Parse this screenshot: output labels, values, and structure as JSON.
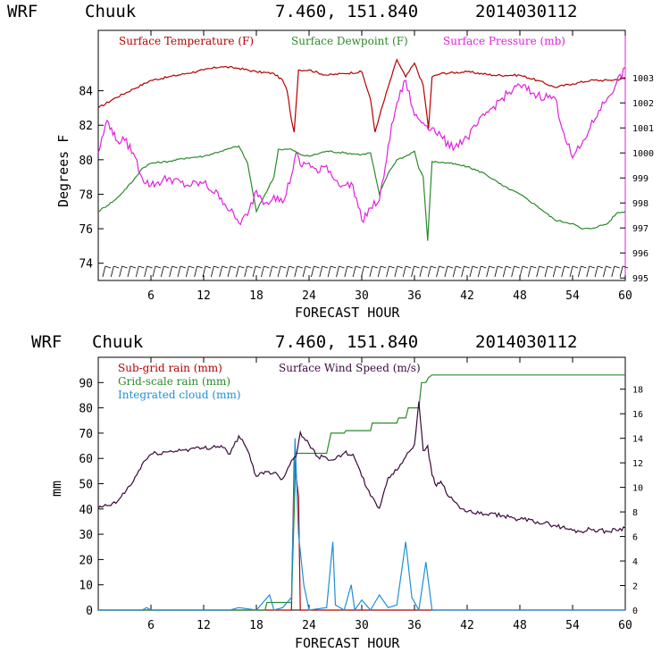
{
  "header": {
    "model": "WRF",
    "station": "Chuuk",
    "coords": "7.460, 151.840",
    "init_time": "2014030112"
  },
  "colors": {
    "temperature": "#b40000",
    "dewpoint": "#2a8a2a",
    "pressure": "#e020e0",
    "subgrid_rain": "#b40000",
    "gridscale_rain": "#2a8a2a",
    "cloud": "#1e8fd6",
    "wind": "#3a0a3a"
  },
  "chart_data": [
    {
      "type": "line",
      "xlabel": "FORECAST HOUR",
      "ylabel": "Degrees F",
      "xlim": [
        0,
        60
      ],
      "ylim": [
        73,
        87.5
      ],
      "y2lim": [
        994.9,
        1004.9
      ],
      "xticks": [
        "6",
        "12",
        "18",
        "24",
        "30",
        "36",
        "42",
        "48",
        "54",
        "60"
      ],
      "yticks": [
        "74",
        "76",
        "78",
        "80",
        "82",
        "84"
      ],
      "y2ticks": [
        "995",
        "996",
        "997",
        "998",
        "999",
        "1000",
        "1001",
        "1002",
        "1003"
      ],
      "series": [
        {
          "name": "Surface Temperature (F)",
          "axis": "left",
          "x": [
            0,
            2,
            4,
            6,
            8,
            10,
            12,
            14,
            16,
            18,
            20,
            21,
            21.5,
            22,
            22.3,
            22.8,
            24,
            26,
            28,
            30,
            31,
            31.5,
            32,
            33,
            34,
            35,
            36,
            37,
            37.6,
            38,
            39,
            42,
            45,
            48,
            50,
            52,
            54,
            56,
            58,
            60
          ],
          "y": [
            83.0,
            83.6,
            84.1,
            84.6,
            84.8,
            85.0,
            85.2,
            85.4,
            85.3,
            85.1,
            85.0,
            84.6,
            84.0,
            82.3,
            81.6,
            85.2,
            85.2,
            84.9,
            85.0,
            85.1,
            83.5,
            81.6,
            82.5,
            84.2,
            85.8,
            84.8,
            85.6,
            84.3,
            81.8,
            84.8,
            85.0,
            85.1,
            84.9,
            84.9,
            84.6,
            84.2,
            84.4,
            84.6,
            84.6,
            84.7
          ]
        },
        {
          "name": "Surface Dewpoint (F)",
          "axis": "left",
          "x": [
            0,
            2,
            4,
            5,
            6,
            8,
            10,
            12,
            14,
            16,
            17,
            18,
            19,
            20,
            20.5,
            22,
            23,
            24,
            26,
            28,
            30,
            31,
            32,
            33,
            34,
            35,
            36,
            36.5,
            37,
            37.5,
            38,
            40,
            42,
            44,
            46,
            48,
            50,
            52,
            54,
            55,
            56,
            58,
            59,
            60
          ],
          "y": [
            77.0,
            77.7,
            78.8,
            79.5,
            79.8,
            79.9,
            80.1,
            80.2,
            80.5,
            80.8,
            79.8,
            77.0,
            78.0,
            79.0,
            80.6,
            80.6,
            80.3,
            80.2,
            80.5,
            80.4,
            80.3,
            80.4,
            78.0,
            79.2,
            80.0,
            80.2,
            80.5,
            79.5,
            79.0,
            75.3,
            79.9,
            79.8,
            79.6,
            79.2,
            78.5,
            78.0,
            77.3,
            76.5,
            76.3,
            76.0,
            76.0,
            76.3,
            76.9,
            77.0
          ]
        },
        {
          "name": "Surface Pressure (mb)",
          "axis": "right",
          "x": [
            0,
            1,
            1.5,
            2,
            3,
            4,
            5,
            6,
            8,
            10,
            12,
            14,
            16,
            17,
            18,
            19,
            20,
            21,
            22,
            22.5,
            23,
            24,
            25,
            26,
            27,
            28,
            29,
            30,
            31,
            32,
            32.5,
            33,
            34,
            35,
            36,
            37,
            38,
            39,
            40,
            42,
            44,
            46,
            48,
            50,
            52,
            53,
            54,
            55,
            56,
            57,
            58,
            59,
            60
          ],
          "y": [
            1000,
            1001.3,
            1001,
            1000.5,
            1000.5,
            1000,
            999,
            998.7,
            999,
            998.7,
            998.8,
            998.2,
            997.2,
            997.5,
            998.5,
            998,
            998.3,
            998,
            999.1,
            1000,
            999.5,
            999.6,
            999.2,
            999.5,
            998.9,
            998.7,
            998.7,
            997.3,
            997.8,
            998.1,
            999,
            1000.3,
            1002,
            1002.9,
            1001.5,
            1001.2,
            1001,
            1000.7,
            1000.2,
            1000.6,
            1001.5,
            1002.2,
            1002.7,
            1002.3,
            1002.2,
            1000.8,
            999.8,
            1000.3,
            1001,
            1001.7,
            1002.2,
            1002.8,
            1003.4
          ]
        }
      ]
    },
    {
      "type": "line",
      "xlabel": "FORECAST HOUR",
      "ylabel": "mm",
      "xlim": [
        0,
        60
      ],
      "ylim": [
        0,
        100
      ],
      "y2lim": [
        0,
        20.6
      ],
      "xticks": [
        "6",
        "12",
        "18",
        "24",
        "30",
        "36",
        "42",
        "48",
        "54",
        "60"
      ],
      "yticks": [
        "0",
        "10",
        "20",
        "30",
        "40",
        "50",
        "60",
        "70",
        "80",
        "90"
      ],
      "y2ticks": [
        "0",
        "2",
        "4",
        "6",
        "8",
        "10",
        "12",
        "14",
        "16",
        "18"
      ],
      "series": [
        {
          "name": "Sub-grid rain (mm)",
          "axis": "left",
          "x": [
            0,
            22,
            22.3,
            22.8,
            23,
            24,
            28,
            60
          ],
          "y": [
            0,
            0,
            60,
            45,
            0,
            0,
            0,
            0
          ]
        },
        {
          "name": "Grid-scale rain (mm)",
          "axis": "left",
          "x": [
            0,
            16,
            19,
            19.2,
            22,
            22.5,
            26,
            26.5,
            28,
            28.2,
            31,
            31.2,
            34,
            34.2,
            35,
            35.3,
            36.5,
            36.8,
            37.3,
            37.6,
            38,
            40,
            60
          ],
          "y": [
            0,
            0,
            0,
            3,
            3,
            62,
            62,
            70,
            70,
            71,
            71,
            74,
            74,
            76,
            76,
            80,
            80,
            90,
            90,
            92,
            93,
            93,
            93
          ]
        },
        {
          "name": "Integrated cloud (mm)",
          "axis": "left",
          "x": [
            0,
            5,
            5.5,
            6,
            15,
            16,
            18,
            19.5,
            20,
            21,
            22,
            22.4,
            22.8,
            23.4,
            24,
            26,
            26.7,
            27,
            28,
            28.8,
            29.2,
            30,
            31,
            32,
            33,
            34,
            35,
            35.7,
            36.5,
            37.3,
            38,
            40,
            60
          ],
          "y": [
            0,
            0,
            1,
            0,
            0,
            1,
            0,
            6,
            0,
            1,
            5,
            68,
            30,
            10,
            0,
            1,
            27,
            2,
            0,
            10,
            0,
            4,
            0,
            6,
            1,
            2,
            27,
            5,
            0,
            19,
            0,
            0,
            0
          ]
        },
        {
          "name": "Surface Wind Speed (m/s)",
          "axis": "right",
          "x": [
            0,
            2,
            4,
            5,
            6,
            8,
            10,
            12,
            14,
            15,
            16,
            17,
            18,
            19,
            20,
            21,
            22,
            22.5,
            23,
            24,
            25,
            26,
            27,
            28,
            29,
            30,
            31,
            32,
            33,
            34,
            35,
            36,
            36.5,
            37,
            37.5,
            38,
            38.5,
            39,
            40,
            41,
            42,
            44,
            46,
            48,
            50,
            52,
            54,
            55,
            56,
            58,
            60
          ],
          "y": [
            8.3,
            8.7,
            10.5,
            11.9,
            12.7,
            12.9,
            13.1,
            13.2,
            13.4,
            12.7,
            14.2,
            13.0,
            10.9,
            11.3,
            11.2,
            10.7,
            12.2,
            12.5,
            14.5,
            13.5,
            12.5,
            12.4,
            12.3,
            12.8,
            12.7,
            10.9,
            9.3,
            8.3,
            10.8,
            11.4,
            12.5,
            13.5,
            17,
            13,
            13.4,
            11,
            10.1,
            10.5,
            9.2,
            8.5,
            8.0,
            7.8,
            7.7,
            7.4,
            7.2,
            6.9,
            6.5,
            6.4,
            6.6,
            6.4,
            6.7
          ]
        }
      ]
    }
  ]
}
